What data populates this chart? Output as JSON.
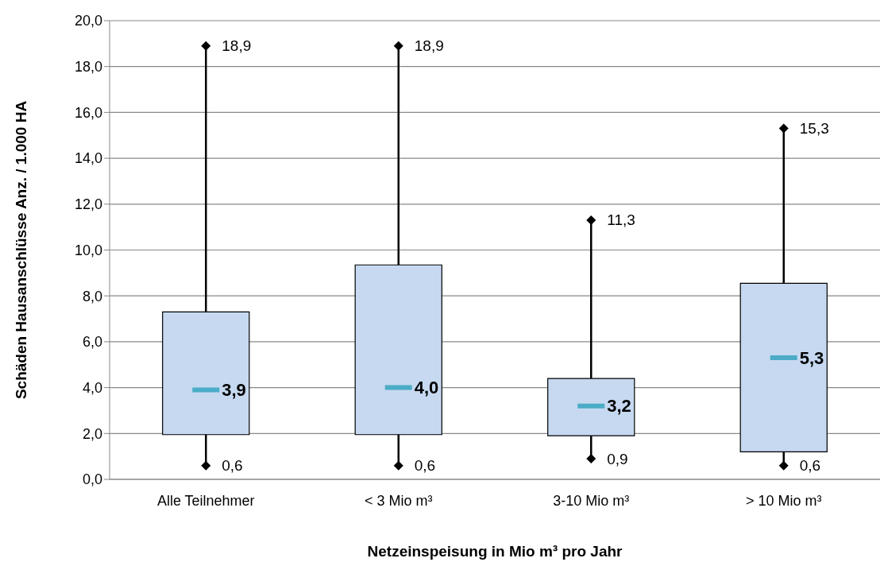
{
  "chart_data": {
    "type": "box",
    "xlabel": "Netzeinspeisung in Mio m³ pro Jahr",
    "ylabel": "Schäden Hausanschlüsse Anz. / 1.000 HA",
    "categories": [
      "Alle Teilnehmer",
      "< 3 Mio m³",
      "3-10 Mio m³",
      "> 10 Mio m³"
    ],
    "color": "#c6d9f1",
    "boxes": [
      {
        "low": 0.6,
        "q1": 1.95,
        "median": 3.9,
        "q3": 7.3,
        "high": 18.9
      },
      {
        "low": 0.6,
        "q1": 1.95,
        "median": 4.0,
        "q3": 9.35,
        "high": 18.9
      },
      {
        "low": 0.9,
        "q1": 1.9,
        "median": 3.2,
        "q3": 4.4,
        "high": 11.3
      },
      {
        "low": 0.6,
        "q1": 1.2,
        "median": 5.3,
        "q3": 8.55,
        "high": 15.3
      }
    ],
    "annotations": [
      {
        "text": "18,9",
        "x": "Alle Teilnehmer",
        "y": 18.9
      },
      {
        "text": "3,9",
        "x": "Alle Teilnehmer",
        "y": 3.9
      },
      {
        "text": "0,6",
        "x": "Alle Teilnehmer",
        "y": 0.6
      },
      {
        "text": "18,9",
        "x": "< 3 Mio m³",
        "y": 18.9
      },
      {
        "text": "4,0",
        "x": "< 3 Mio m³",
        "y": 4.0
      },
      {
        "text": "0,6",
        "x": "< 3 Mio m³",
        "y": 0.6
      },
      {
        "text": "11,3",
        "x": "3-10 Mio m³",
        "y": 11.3
      },
      {
        "text": "3,2",
        "x": "3-10 Mio m³",
        "y": 3.2
      },
      {
        "text": "0,9",
        "x": "3-10 Mio m³",
        "y": 0.9
      },
      {
        "text": "15,3",
        "x": "> 10 Mio m³",
        "y": 15.3
      },
      {
        "text": "5,3",
        "x": "> 10 Mio m³",
        "y": 5.3
      },
      {
        "text": "0,6",
        "x": "> 10 Mio m³",
        "y": 0.6
      }
    ],
    "ylim": [
      0,
      20
    ],
    "yticks": [
      {
        "value": 0,
        "label": "0,0"
      },
      {
        "value": 2,
        "label": "2,0"
      },
      {
        "value": 4,
        "label": "4,0"
      },
      {
        "value": 6,
        "label": "6,0"
      },
      {
        "value": 8,
        "label": "8,0"
      },
      {
        "value": 10,
        "label": "10,0"
      },
      {
        "value": 12,
        "label": "12,0"
      },
      {
        "value": 14,
        "label": "14,0"
      },
      {
        "value": 16,
        "label": "16,0"
      },
      {
        "value": 18,
        "label": "18,0"
      },
      {
        "value": 20,
        "label": "20,0"
      }
    ],
    "grid": "y",
    "marker": "diamond"
  }
}
